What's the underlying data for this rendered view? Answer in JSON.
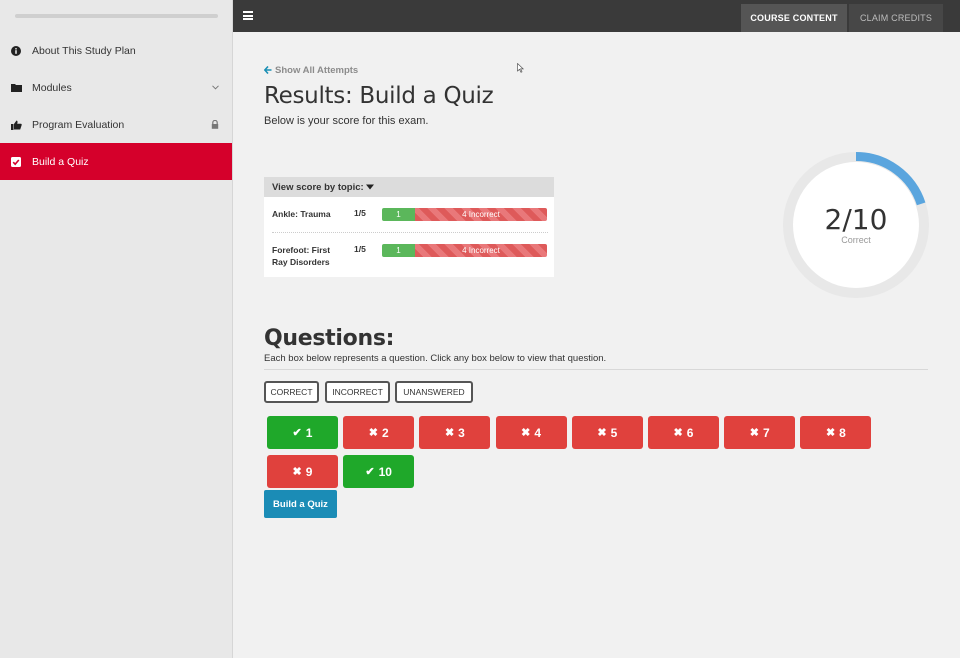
{
  "sidebar": {
    "items": [
      {
        "label": "About This Study Plan",
        "icon": "info-circle-icon",
        "trail": ""
      },
      {
        "label": "Modules",
        "icon": "folder-icon",
        "trail": "chevron-down-icon"
      },
      {
        "label": "Program Evaluation",
        "icon": "thumbs-up-icon",
        "trail": "lock-icon"
      },
      {
        "label": "Build a Quiz",
        "icon": "checkbox-icon",
        "trail": ""
      }
    ],
    "active_index": 3,
    "active_color": "#d5002b"
  },
  "topbar": {
    "tabs": [
      {
        "label": "COURSE CONTENT",
        "active": true
      },
      {
        "label": "CLAIM CREDITS",
        "active": false
      }
    ]
  },
  "main": {
    "back_link": "Show All Attempts",
    "title": "Results: Build a Quiz",
    "subtitle": "Below is your score for this exam.",
    "topic_card": {
      "header": "View score by topic:",
      "rows": [
        {
          "name": "Ankle: Trauma",
          "score": "1/5",
          "correct": "1",
          "incorrect": "4 Incorrect"
        },
        {
          "name": "Forefoot: First Ray Disorders",
          "score": "1/5",
          "correct": "1",
          "incorrect": "4 Incorrect"
        }
      ]
    },
    "score": {
      "value": "2/10",
      "label": "Correct",
      "fraction": 0.2,
      "ring_color": "#5aa5de"
    },
    "questions": {
      "title": "Questions:",
      "description": "Each box below represents a question. Click any box below to view that question.",
      "filters": [
        "CORRECT",
        "INCORRECT",
        "UNANSWERED"
      ],
      "items": [
        {
          "number": "1",
          "status": "correct"
        },
        {
          "number": "2",
          "status": "incorrect"
        },
        {
          "number": "3",
          "status": "incorrect"
        },
        {
          "number": "4",
          "status": "incorrect"
        },
        {
          "number": "5",
          "status": "incorrect"
        },
        {
          "number": "6",
          "status": "incorrect"
        },
        {
          "number": "7",
          "status": "incorrect"
        },
        {
          "number": "8",
          "status": "incorrect"
        },
        {
          "number": "9",
          "status": "incorrect"
        },
        {
          "number": "10",
          "status": "correct"
        }
      ]
    },
    "build_button": "Build a Quiz"
  }
}
